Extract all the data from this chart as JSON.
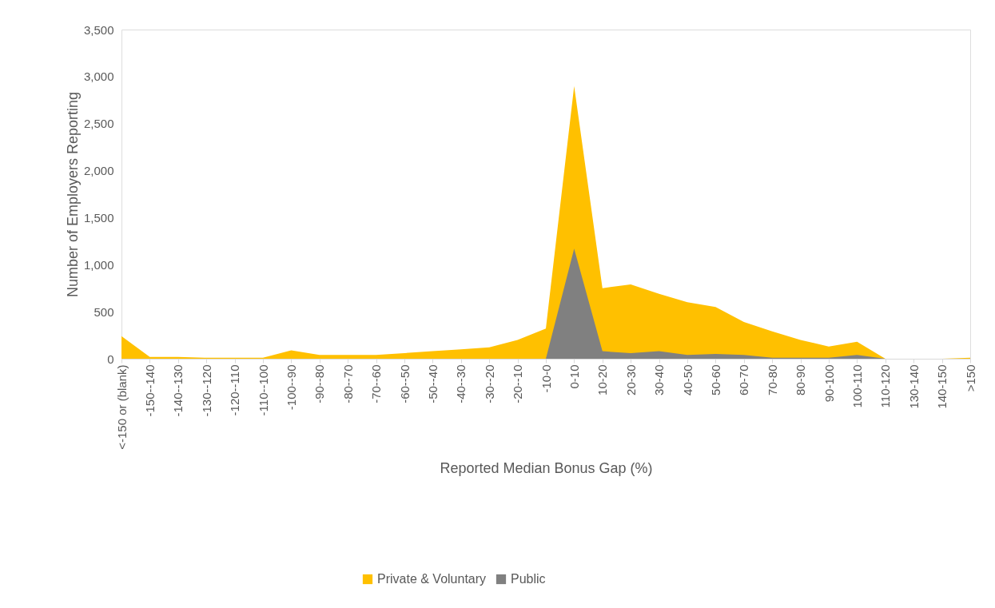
{
  "chart_data": {
    "type": "area",
    "xlabel": "Reported Median Bonus Gap (%)",
    "ylabel": "Number of Employers Reporting",
    "categories": [
      "<-150 or (blank)",
      "-150--140",
      "-140--130",
      "-130--120",
      "-120--110",
      "-110--100",
      "-100--90",
      "-90--80",
      "-80--70",
      "-70--60",
      "-60--50",
      "-50--40",
      "-40--30",
      "-30--20",
      "-20--10",
      "-10-0",
      "0-10",
      "10-20",
      "20-30",
      "30-40",
      "40-50",
      "50-60",
      "60-70",
      "70-80",
      "80-90",
      "90-100",
      "100-110",
      "110-120",
      "130-140",
      "140-150",
      ">150"
    ],
    "series": [
      {
        "name": "Private & Voluntary",
        "color": "#ffc000",
        "values": [
          240,
          20,
          20,
          10,
          10,
          10,
          90,
          40,
          40,
          40,
          60,
          80,
          100,
          120,
          200,
          320,
          2900,
          750,
          790,
          690,
          600,
          550,
          390,
          290,
          200,
          130,
          180,
          0,
          0,
          0,
          10
        ]
      },
      {
        "name": "Public",
        "color": "#808080",
        "values": [
          0,
          0,
          0,
          0,
          0,
          0,
          0,
          0,
          0,
          0,
          0,
          0,
          0,
          0,
          0,
          0,
          1170,
          80,
          60,
          80,
          40,
          50,
          40,
          10,
          10,
          10,
          40,
          0,
          0,
          0,
          0
        ]
      }
    ],
    "ylim": [
      0,
      3500
    ],
    "yticks": [
      0,
      {
        "value": 500,
        "label": "500"
      },
      {
        "value": 1000,
        "label": "1,000"
      },
      {
        "value": 1500,
        "label": "1,500"
      },
      {
        "value": 2000,
        "label": "2,000"
      },
      {
        "value": 2500,
        "label": "2,500"
      },
      {
        "value": 3000,
        "label": "3,000"
      },
      {
        "value": 3500,
        "label": "3,500"
      }
    ],
    "grid": false,
    "legend": "bottom"
  }
}
